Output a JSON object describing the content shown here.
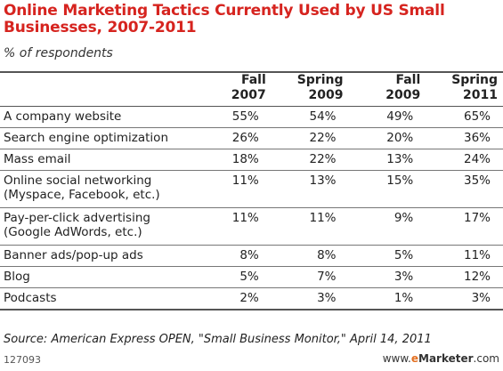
{
  "title": "Online Marketing Tactics Currently Used by US Small Businesses, 2007-2011",
  "subtitle": "% of respondents",
  "source": "Source: American Express OPEN, \"Small Business Monitor,\" April 14, 2011",
  "chart_id": "127093",
  "brand": {
    "prefix": "www.",
    "e": "e",
    "name": "Marketer",
    "suffix": ".com"
  },
  "colors": {
    "title": "#d6241f",
    "brand_accent": "#e37022"
  },
  "chart_data": {
    "type": "table",
    "title": "Online Marketing Tactics Currently Used by US Small Businesses, 2007-2011",
    "subtitle": "% of respondents",
    "columns": [
      {
        "line1": "Fall",
        "line2": "2007"
      },
      {
        "line1": "Spring",
        "line2": "2009"
      },
      {
        "line1": "Fall",
        "line2": "2009"
      },
      {
        "line1": "Spring",
        "line2": "2011"
      }
    ],
    "rows": [
      {
        "label": "A company website",
        "sublabel": "",
        "values": [
          "55%",
          "54%",
          "49%",
          "65%"
        ]
      },
      {
        "label": "Search engine optimization",
        "sublabel": "",
        "values": [
          "26%",
          "22%",
          "20%",
          "36%"
        ]
      },
      {
        "label": "Mass email",
        "sublabel": "",
        "values": [
          "18%",
          "22%",
          "13%",
          "24%"
        ]
      },
      {
        "label": "Online social networking",
        "sublabel": "(Myspace, Facebook, etc.)",
        "values": [
          "11%",
          "13%",
          "15%",
          "35%"
        ]
      },
      {
        "label": "Pay-per-click advertising",
        "sublabel": "(Google AdWords, etc.)",
        "values": [
          "11%",
          "11%",
          "9%",
          "17%"
        ]
      },
      {
        "label": "Banner ads/pop-up ads",
        "sublabel": "",
        "values": [
          "8%",
          "8%",
          "5%",
          "11%"
        ]
      },
      {
        "label": "Blog",
        "sublabel": "",
        "values": [
          "5%",
          "7%",
          "3%",
          "12%"
        ]
      },
      {
        "label": "Podcasts",
        "sublabel": "",
        "values": [
          "2%",
          "3%",
          "1%",
          "3%"
        ]
      }
    ]
  }
}
